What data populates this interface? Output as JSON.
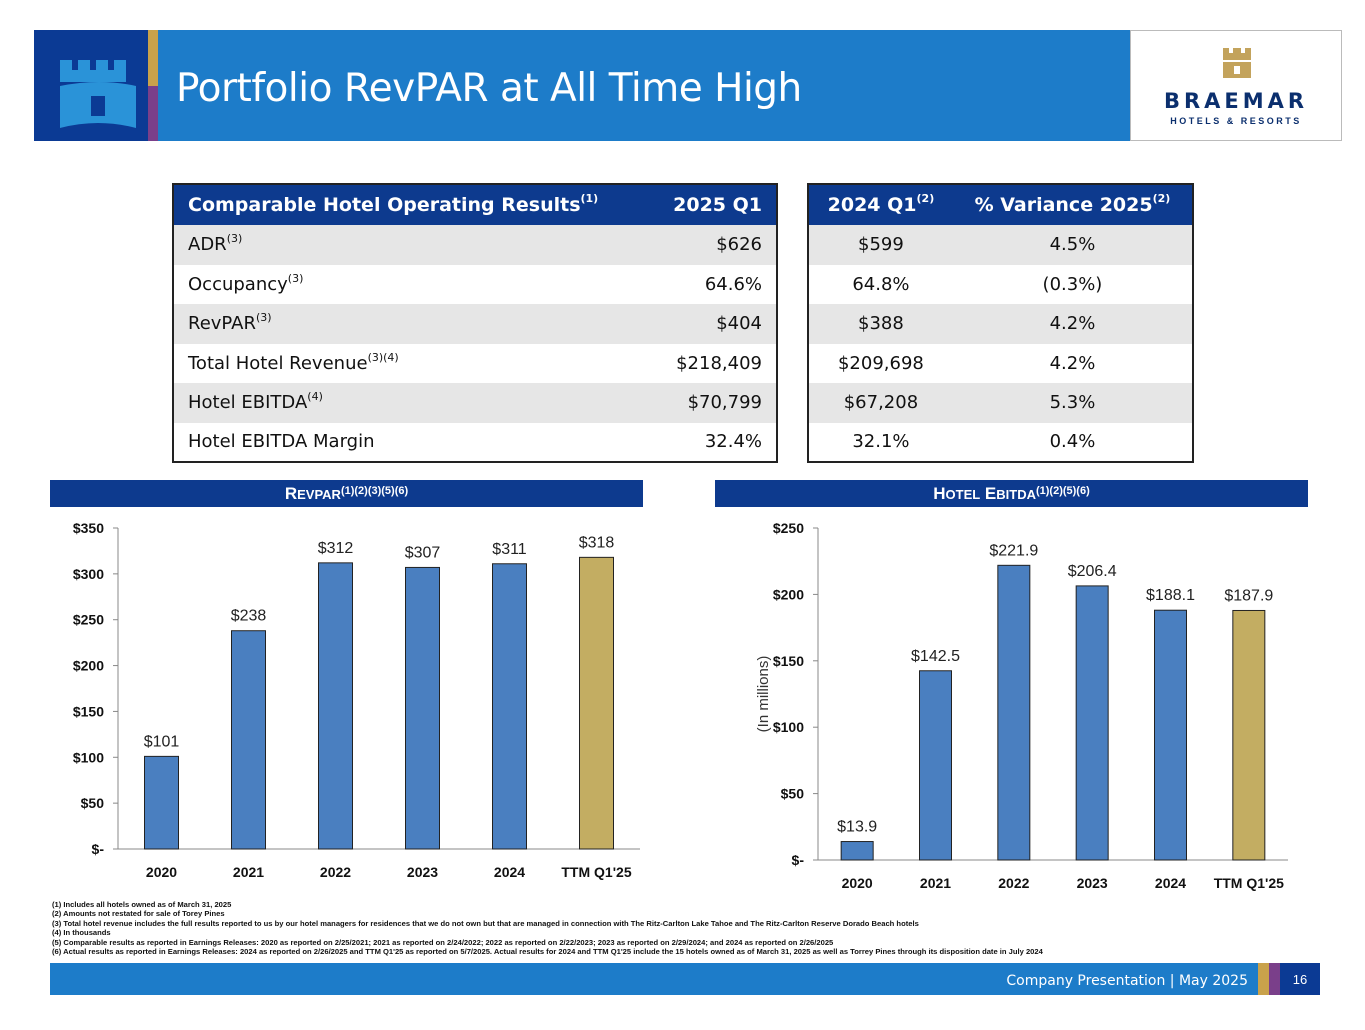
{
  "header": {
    "title": "Portfolio RevPAR at All Time High",
    "logo_word": "BRAEMAR",
    "logo_sub": "HOTELS & RESORTS"
  },
  "colors": {
    "navy": "#0d3a8e",
    "blue": "#1d7cc9",
    "bar": "#4a7fc0",
    "highlight_bar": "#c3ad62",
    "gold": "#c9a24b",
    "purple": "#7a3f8a"
  },
  "table_left": {
    "headers": [
      "Comparable Hotel Operating Results",
      "2025 Q1"
    ],
    "header_sup": "(1)",
    "rows": [
      {
        "label": "ADR",
        "sup": "(3)",
        "value": "$626"
      },
      {
        "label": "Occupancy",
        "sup": "(3)",
        "value": "64.6%"
      },
      {
        "label": "RevPAR",
        "sup": "(3)",
        "value": "$404"
      },
      {
        "label": "Total Hotel Revenue",
        "sup": "(3)(4)",
        "value": "$218,409"
      },
      {
        "label": "Hotel EBITDA",
        "sup": "(4)",
        "value": "$70,799"
      },
      {
        "label": "Hotel EBITDA Margin",
        "sup": "",
        "value": "32.4%"
      }
    ]
  },
  "table_right": {
    "headers": [
      "2024 Q1",
      "% Variance 2025"
    ],
    "header_sups": [
      "(2)",
      "(2)"
    ],
    "rows": [
      [
        "$599",
        "4.5%"
      ],
      [
        "64.8%",
        "(0.3%)"
      ],
      [
        "$388",
        "4.2%"
      ],
      [
        "$209,698",
        "4.2%"
      ],
      [
        "$67,208",
        "5.3%"
      ],
      [
        "32.1%",
        "0.4%"
      ]
    ]
  },
  "chart_data": [
    {
      "type": "bar",
      "title": "RevPAR",
      "title_sup": "(1)(2)(3)(5)(6)",
      "categories": [
        "2020",
        "2021",
        "2022",
        "2023",
        "2024",
        "TTM Q1'25"
      ],
      "values": [
        101,
        238,
        312,
        307,
        311,
        318
      ],
      "labels": [
        "$101",
        "$238",
        "$312",
        "$307",
        "$311",
        "$318"
      ],
      "ylim": [
        0,
        350
      ],
      "yticks": [
        0,
        50,
        100,
        150,
        200,
        250,
        300,
        350
      ],
      "ytick_labels": [
        "$-",
        "$50",
        "$100",
        "$150",
        "$200",
        "$250",
        "$300",
        "$350"
      ],
      "ylabel": "",
      "highlight_index": 5,
      "grid": false
    },
    {
      "type": "bar",
      "title": "Hotel EBITDA",
      "title_sup": "(1)(2)(5)(6)",
      "categories": [
        "2020",
        "2021",
        "2022",
        "2023",
        "2024",
        "TTM Q1'25"
      ],
      "values": [
        13.9,
        142.5,
        221.9,
        206.4,
        188.1,
        187.9
      ],
      "labels": [
        "$13.9",
        "$142.5",
        "$221.9",
        "$206.4",
        "$188.1",
        "$187.9"
      ],
      "ylim": [
        0,
        250
      ],
      "yticks": [
        0,
        50,
        100,
        150,
        200,
        250
      ],
      "ytick_labels": [
        "$-",
        "$50",
        "$100",
        "$150",
        "$200",
        "$250"
      ],
      "ylabel": "(In millions)",
      "highlight_index": 5,
      "grid": false
    }
  ],
  "footnotes": [
    "(1) Includes all hotels owned as of March 31, 2025",
    "(2) Amounts not restated for sale of Torey Pines",
    "(3) Total hotel revenue includes the full results reported to us by our hotel managers for residences that we do not own but that are managed in connection with The Ritz-Carlton Lake Tahoe and The Ritz-Carlton Reserve Dorado Beach hotels",
    "(4) In thousands",
    "(5) Comparable results as reported in Earnings Releases: 2020 as reported on 2/25/2021; 2021 as reported on 2/24/2022; 2022 as reported on 2/22/2023; 2023 as reported on 2/29/2024; and 2024 as reported on 2/26/2025",
    "(6) Actual results as reported in Earnings Releases: 2024 as reported on 2/26/2025 and TTM Q1'25 as reported on 5/7/2025. Actual results for 2024 and TTM Q1'25 include the 15  hotels owned as of March 31, 2025 as well as Torrey Pines through its disposition date in July 2024"
  ],
  "footer": {
    "text": "Company Presentation | May 2025",
    "page": "16"
  }
}
